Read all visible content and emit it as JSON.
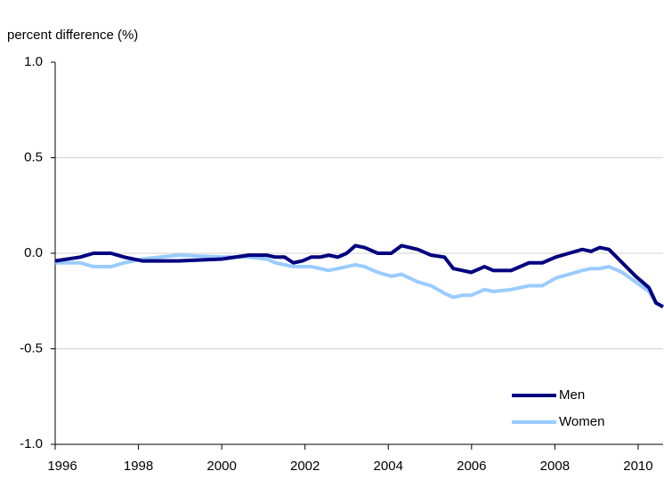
{
  "chart_data": {
    "type": "line",
    "y_axis_label": "percent difference  (%)",
    "x": [
      1996.0,
      1996.6,
      1996.92,
      1997.34,
      1997.66,
      1998.09,
      1998.95,
      2000.01,
      2000.65,
      2001.08,
      2001.29,
      2001.51,
      2001.72,
      2001.94,
      2002.15,
      2002.36,
      2002.57,
      2002.79,
      2003.0,
      2003.21,
      2003.43,
      2003.75,
      2004.07,
      2004.32,
      2004.71,
      2005.03,
      2005.35,
      2005.56,
      2005.78,
      2005.99,
      2006.31,
      2006.52,
      2006.95,
      2007.38,
      2007.7,
      2008.02,
      2008.34,
      2008.66,
      2008.87,
      2009.08,
      2009.3,
      2009.62,
      2009.94,
      2010.26,
      2010.43,
      2010.6
    ],
    "series": [
      {
        "name": "Men",
        "color": "#000080",
        "values": [
          -0.04,
          -0.02,
          0.0,
          0.0,
          -0.02,
          -0.04,
          -0.04,
          -0.03,
          -0.01,
          -0.01,
          -0.02,
          -0.02,
          -0.05,
          -0.04,
          -0.02,
          -0.02,
          -0.01,
          -0.02,
          0.0,
          0.04,
          0.03,
          0.0,
          0.0,
          0.04,
          0.02,
          -0.01,
          -0.02,
          -0.08,
          -0.09,
          -0.1,
          -0.07,
          -0.09,
          -0.09,
          -0.05,
          -0.05,
          -0.02,
          0.0,
          0.02,
          0.01,
          0.03,
          0.02,
          -0.05,
          -0.12,
          -0.18,
          -0.26,
          -0.28
        ]
      },
      {
        "name": "Women",
        "color": "#99ccff",
        "values": [
          -0.05,
          -0.05,
          -0.07,
          -0.07,
          -0.05,
          -0.03,
          -0.01,
          -0.02,
          -0.02,
          -0.03,
          -0.05,
          -0.06,
          -0.07,
          -0.07,
          -0.07,
          -0.08,
          -0.09,
          -0.08,
          -0.07,
          -0.06,
          -0.07,
          -0.1,
          -0.12,
          -0.11,
          -0.15,
          -0.17,
          -0.21,
          -0.23,
          -0.22,
          -0.22,
          -0.19,
          -0.2,
          -0.19,
          -0.17,
          -0.17,
          -0.13,
          -0.11,
          -0.09,
          -0.08,
          -0.08,
          -0.07,
          -0.1,
          -0.15,
          -0.2,
          -0.26,
          -0.28
        ]
      }
    ],
    "xlim": [
      1996,
      2010.6
    ],
    "xticks": [
      1996,
      1998,
      2000,
      2002,
      2004,
      2006,
      2008,
      2010
    ],
    "ylim": [
      -1.0,
      1.0
    ],
    "yticks": [
      {
        "value": 1.0,
        "label": "1.0"
      },
      {
        "value": 0.5,
        "label": "0.5"
      },
      {
        "value": 0.0,
        "label": "0.0"
      },
      {
        "value": -0.5,
        "label": "-0.5"
      },
      {
        "value": -1.0,
        "label": "-1.0"
      }
    ],
    "grid": true,
    "legend": "lower right"
  }
}
